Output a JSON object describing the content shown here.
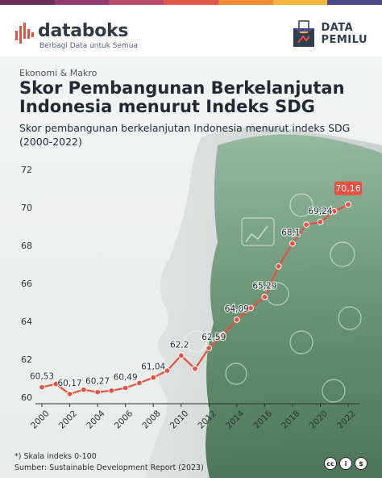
{
  "brand": {
    "name": "databoks",
    "tagline": "Berbagi Data untuk Semua",
    "partner_line1": "DATA",
    "partner_line2": "PEMILU"
  },
  "colors": {
    "accent": "#e8503f",
    "dark": "#1f2a36",
    "forest": "#4d7a5a"
  },
  "kicker": "Ekonomi & Makro",
  "title": "Skor Pembangunan Berkelanjutan Indonesia menurut Indeks SDG",
  "subtitle": "Skor pembangunan berkelanjutan Indonesia menurut indeks SDG (2000-2022)",
  "footnote": "*) Skala indeks 0-100",
  "source": "Sumber: Sustainable Development Report (2023)",
  "license_icons": [
    "cc-icon",
    "attribution-icon",
    "noncommercial-icon"
  ],
  "chart_data": {
    "type": "line",
    "title": "Skor pembangunan berkelanjutan Indonesia menurut indeks SDG (2000-2022)",
    "x": [
      2000,
      2001,
      2002,
      2003,
      2004,
      2005,
      2006,
      2007,
      2008,
      2009,
      2010,
      2011,
      2012,
      2013,
      2014,
      2015,
      2016,
      2017,
      2018,
      2019,
      2020,
      2021,
      2022
    ],
    "series": [
      {
        "values": [
          60.53,
          60.7,
          60.17,
          60.4,
          60.27,
          60.35,
          60.49,
          60.75,
          61.04,
          61.4,
          62.2,
          61.5,
          62.59,
          63.3,
          64.09,
          64.7,
          65.29,
          66.9,
          68.1,
          69.1,
          69.24,
          69.8,
          70.16
        ]
      }
    ],
    "data_labels": {
      "2000": "60,53",
      "2002": "60,17",
      "2004": "60,27",
      "2006": "60,49",
      "2008": "61,04",
      "2010": "62,2",
      "2012": "62,59",
      "2014": "64,09",
      "2016": "65,29",
      "2018": "68,1",
      "2020": "69,24",
      "2022": "70,16"
    },
    "xticks": [
      2000,
      2002,
      2004,
      2006,
      2008,
      2010,
      2012,
      2014,
      2016,
      2018,
      2020,
      2022
    ],
    "yticks": [
      60,
      62,
      64,
      66,
      68,
      70,
      72
    ],
    "ylim": [
      60,
      72
    ],
    "xlim": [
      2000,
      2022
    ],
    "grid": false,
    "highlight_last": true
  }
}
